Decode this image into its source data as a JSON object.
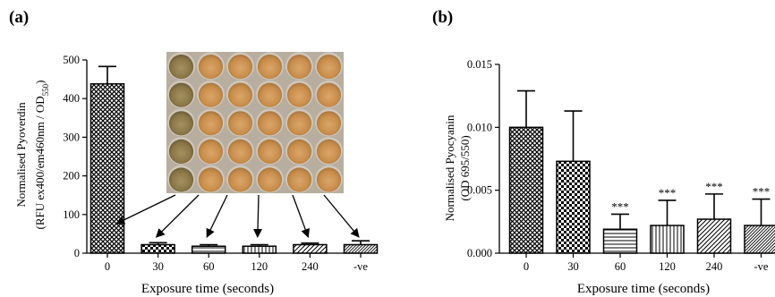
{
  "colors": {
    "axis": "#000000",
    "bar_fill": "#ffffff",
    "plate_bg": "#b8aea0",
    "well_fill": "#d29a57",
    "well_dark": "#8f7c4e",
    "well_rim": "#cfc7bb"
  },
  "chart_data": [
    {
      "panel": "(a)",
      "type": "bar",
      "categories": [
        "0",
        "30",
        "60",
        "120",
        "240",
        "-ve"
      ],
      "values": [
        438,
        22,
        18,
        18,
        22,
        22
      ],
      "errors": [
        45,
        5,
        4,
        4,
        4,
        10
      ],
      "patterns": [
        "crosshatch",
        "checker",
        "hlines",
        "vlines",
        "diag",
        "diag-dense"
      ],
      "ylabel_line1": "Normalised Pyoverdin",
      "ylabel_line2_main": "(RFU ex400/em460nm / OD",
      "ylabel_line2_sub": "550",
      "ylabel_line2_end": ")",
      "xlabel": "Exposure time (seconds)",
      "ylim": [
        0,
        500
      ],
      "yticks": [
        "0",
        "100",
        "200",
        "300",
        "400",
        "500"
      ],
      "inset": {
        "rows": 5,
        "cols": 6,
        "control_column": 0,
        "arrow_targets": [
          "0",
          "30",
          "60",
          "120",
          "240",
          "-ve"
        ]
      }
    },
    {
      "panel": "(b)",
      "type": "bar",
      "categories": [
        "0",
        "30",
        "60",
        "120",
        "240",
        "-ve"
      ],
      "values": [
        0.01,
        0.0073,
        0.0019,
        0.0022,
        0.0027,
        0.0022
      ],
      "errors": [
        0.0029,
        0.004,
        0.0012,
        0.002,
        0.002,
        0.0021
      ],
      "significance": [
        "",
        "",
        "***",
        "***",
        "***",
        "***"
      ],
      "patterns": [
        "crosshatch",
        "checker",
        "hlines",
        "vlines",
        "diag",
        "diag-dense"
      ],
      "ylabel_line1": "Normalised Pyocyanin",
      "ylabel_line2": "(OD 695/550)",
      "xlabel": "Exposure time (seconds)",
      "ylim": [
        0,
        0.015
      ],
      "yticks": [
        "0.000",
        "0.005",
        "0.010",
        "0.015"
      ]
    }
  ]
}
